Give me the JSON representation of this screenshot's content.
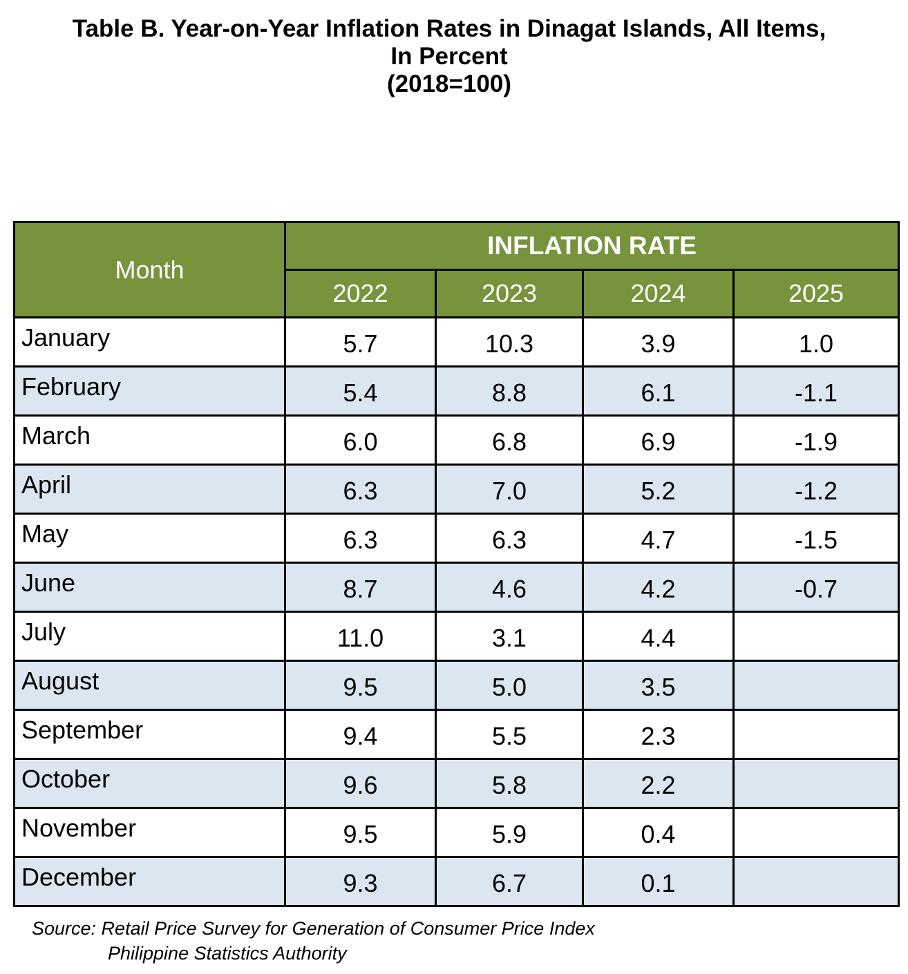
{
  "title": {
    "line1": "Table B. Year-on-Year Inflation Rates in Dinagat Islands, All Items,",
    "line2": "In Percent",
    "line3": "(2018=100)"
  },
  "table": {
    "month_header": "Month",
    "group_header": "INFLATION RATE",
    "years": [
      "2022",
      "2023",
      "2024",
      "2025"
    ],
    "colors": {
      "header_bg": "#77933c",
      "header_text": "#ffffff",
      "row_alt_bg": "#dce6f1",
      "row_bg": "#ffffff"
    }
  },
  "source": {
    "line1": "Source: Retail Price Survey for Generation of Consumer Price Index",
    "line2": "Philippine Statistics Authority"
  },
  "chart_data": {
    "type": "table",
    "title": "Table B. Year-on-Year Inflation Rates in Dinagat Islands, All Items, In Percent (2018=100)",
    "columns": [
      "Month",
      "2022",
      "2023",
      "2024",
      "2025"
    ],
    "rows": [
      [
        "January",
        "5.7",
        "10.3",
        "3.9",
        "1.0"
      ],
      [
        "February",
        "5.4",
        "8.8",
        "6.1",
        "-1.1"
      ],
      [
        "March",
        "6.0",
        "6.8",
        "6.9",
        "-1.9"
      ],
      [
        "April",
        "6.3",
        "7.0",
        "5.2",
        "-1.2"
      ],
      [
        "May",
        "6.3",
        "6.3",
        "4.7",
        "-1.5"
      ],
      [
        "June",
        "8.7",
        "4.6",
        "4.2",
        "-0.7"
      ],
      [
        "July",
        "11.0",
        "3.1",
        "4.4",
        ""
      ],
      [
        "August",
        "9.5",
        "5.0",
        "3.5",
        ""
      ],
      [
        "September",
        "9.4",
        "5.5",
        "2.3",
        ""
      ],
      [
        "October",
        "9.6",
        "5.8",
        "2.2",
        ""
      ],
      [
        "November",
        "9.5",
        "5.9",
        "0.4",
        ""
      ],
      [
        "December",
        "9.3",
        "6.7",
        "0.1",
        ""
      ]
    ]
  }
}
